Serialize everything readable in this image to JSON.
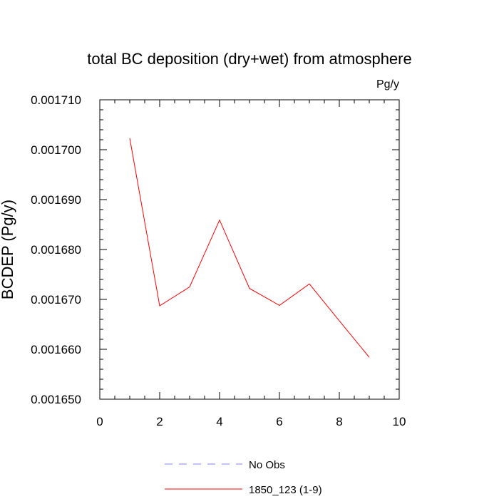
{
  "chart_data": {
    "type": "line",
    "title": "total BC deposition (dry+wet) from atmosphere",
    "units_label": "Pg/y",
    "xlabel": "",
    "ylabel": "BCDEP  (Pg/y)",
    "xlim": [
      0,
      10
    ],
    "ylim": [
      0.00165,
      0.00171
    ],
    "x_ticks": [
      0,
      2,
      4,
      6,
      8,
      10
    ],
    "x_tick_labels": [
      "0",
      "2",
      "4",
      "6",
      "8",
      "10"
    ],
    "y_ticks": [
      0.00165,
      0.00166,
      0.00167,
      0.00168,
      0.00169,
      0.0017,
      0.00171
    ],
    "y_tick_labels": [
      "0.001650",
      "0.001660",
      "0.001670",
      "0.001680",
      "0.001690",
      "0.001700",
      "0.001710"
    ],
    "grid": false,
    "legend_position": "bottom",
    "series": [
      {
        "name": "No Obs",
        "style": "dashed",
        "color": "#8080ff",
        "x": [],
        "y": []
      },
      {
        "name": "1850_123 (1-9)",
        "style": "solid",
        "color": "#ff0000",
        "x": [
          1,
          2,
          3,
          4,
          5,
          6,
          7,
          8,
          9
        ],
        "y": [
          0.0017023,
          0.0016687,
          0.0016725,
          0.0016859,
          0.0016722,
          0.0016688,
          0.0016731,
          0.0016657,
          0.0016584
        ]
      }
    ]
  }
}
